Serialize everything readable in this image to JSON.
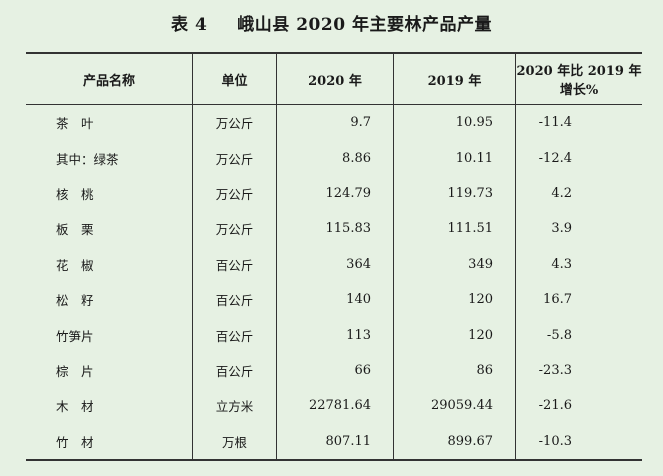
{
  "title": {
    "number": "表 4",
    "text": "峨山县 2020 年主要林产品产量"
  },
  "headers": {
    "name": "产品名称",
    "unit": "单位",
    "y2020": "2020 年",
    "y2019": "2019 年",
    "change": "2020 年比 2019 年增长%"
  },
  "rows": [
    {
      "name": "茶　叶",
      "unit": "万公斤",
      "y2020": "9.7",
      "y2019": "10.95",
      "change": "-11.4"
    },
    {
      "name": "其中：绿茶",
      "unit": "万公斤",
      "y2020": "8.86",
      "y2019": "10.11",
      "change": "-12.4"
    },
    {
      "name": "核　桃",
      "unit": "万公斤",
      "y2020": "124.79",
      "y2019": "119.73",
      "change": "4.2"
    },
    {
      "name": "板　栗",
      "unit": "万公斤",
      "y2020": "115.83",
      "y2019": "111.51",
      "change": "3.9"
    },
    {
      "name": "花　椒",
      "unit": "百公斤",
      "y2020": "364",
      "y2019": "349",
      "change": "4.3"
    },
    {
      "name": "松　籽",
      "unit": "百公斤",
      "y2020": "140",
      "y2019": "120",
      "change": "16.7"
    },
    {
      "name": "竹笋片",
      "unit": "百公斤",
      "y2020": "113",
      "y2019": "120",
      "change": "-5.8"
    },
    {
      "name": "棕　片",
      "unit": "百公斤",
      "y2020": "66",
      "y2019": "86",
      "change": "-23.3"
    },
    {
      "name": "木　材",
      "unit": "立方米",
      "y2020": "22781.64",
      "y2019": "29059.44",
      "change": "-21.6"
    },
    {
      "name": "竹　材",
      "unit": "万根",
      "y2020": "807.11",
      "y2019": "899.67",
      "change": "-10.3"
    }
  ]
}
